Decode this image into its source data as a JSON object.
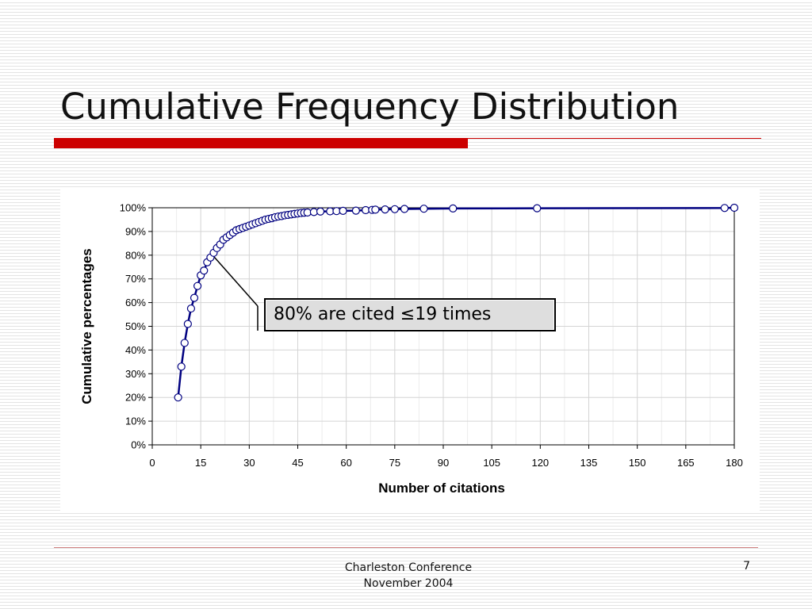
{
  "slide": {
    "title": "Cumulative Frequency Distribution",
    "footer_line1": "Charleston Conference",
    "footer_line2": "November 2004",
    "page_number": "7",
    "accent_color": "#cc0000"
  },
  "callout": {
    "text": "80% are cited ≤19 times",
    "points_to": {
      "x": 18,
      "y": 81
    }
  },
  "chart_data": {
    "type": "line",
    "title": "",
    "xlabel": "Number of citations",
    "ylabel": "Cumulative percentages",
    "xlim": [
      0,
      180
    ],
    "ylim": [
      0,
      100
    ],
    "x_ticks": [
      0,
      15,
      30,
      45,
      60,
      75,
      90,
      105,
      120,
      135,
      150,
      165,
      180
    ],
    "y_ticks": [
      0,
      10,
      20,
      30,
      40,
      50,
      60,
      70,
      80,
      90,
      100
    ],
    "y_tick_labels": [
      "0%",
      "10%",
      "20%",
      "30%",
      "40%",
      "50%",
      "60%",
      "70%",
      "80%",
      "90%",
      "100%"
    ],
    "grid": true,
    "legend": "none",
    "line_color": "#000080",
    "marker": "open-circle",
    "series": [
      {
        "values": [
          [
            8,
            20
          ],
          [
            9,
            33
          ],
          [
            10,
            43
          ],
          [
            11,
            51
          ],
          [
            12,
            57.5
          ],
          [
            13,
            62
          ],
          [
            14,
            67
          ],
          [
            15,
            71.5
          ],
          [
            16,
            73.5
          ],
          [
            17,
            77
          ],
          [
            18,
            79
          ],
          [
            19,
            81
          ],
          [
            20,
            83
          ],
          [
            21,
            84.5
          ],
          [
            22,
            86.5
          ],
          [
            23,
            87.5
          ],
          [
            24,
            88.5
          ],
          [
            25,
            89.5
          ],
          [
            26,
            90.5
          ],
          [
            27,
            91
          ],
          [
            28,
            91.5
          ],
          [
            29,
            92
          ],
          [
            30,
            92.5
          ],
          [
            31,
            93
          ],
          [
            32,
            93.5
          ],
          [
            33,
            94
          ],
          [
            34,
            94.5
          ],
          [
            35,
            95
          ],
          [
            36,
            95.3
          ],
          [
            37,
            95.6
          ],
          [
            38,
            96
          ],
          [
            39,
            96.3
          ],
          [
            40,
            96.5
          ],
          [
            41,
            96.8
          ],
          [
            42,
            97
          ],
          [
            43,
            97.2
          ],
          [
            44,
            97.4
          ],
          [
            45,
            97.6
          ],
          [
            46,
            97.8
          ],
          [
            47,
            97.9
          ],
          [
            48,
            98
          ],
          [
            50,
            98.2
          ],
          [
            52,
            98.4
          ],
          [
            55,
            98.5
          ],
          [
            57,
            98.6
          ],
          [
            59,
            98.7
          ],
          [
            63,
            98.8
          ],
          [
            66,
            99
          ],
          [
            68,
            99.1
          ],
          [
            69,
            99.2
          ],
          [
            72,
            99.3
          ],
          [
            75,
            99.4
          ],
          [
            78,
            99.5
          ],
          [
            84,
            99.6
          ],
          [
            93,
            99.7
          ],
          [
            119,
            99.8
          ],
          [
            177,
            99.9
          ],
          [
            180,
            100
          ]
        ]
      }
    ]
  }
}
